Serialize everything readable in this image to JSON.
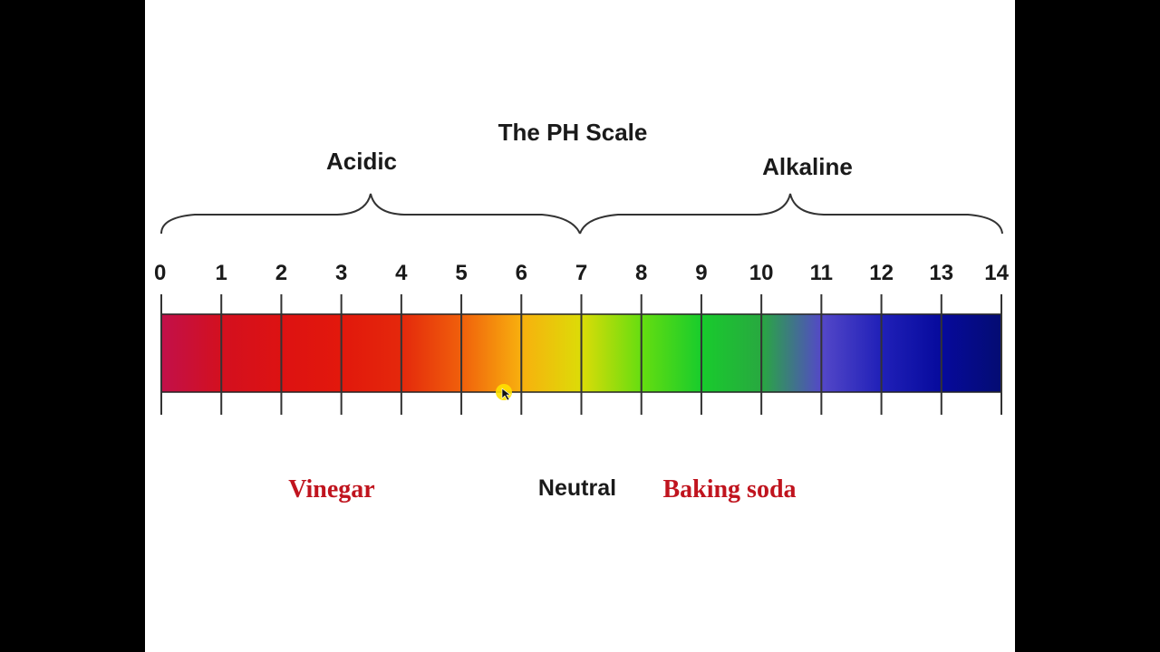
{
  "title": "The PH Scale",
  "ranges": {
    "acidic": "Acidic",
    "alkaline": "Alkaline"
  },
  "ticks": [
    "0",
    "1",
    "2",
    "3",
    "4",
    "5",
    "6",
    "7",
    "8",
    "9",
    "10",
    "11",
    "12",
    "13",
    "14"
  ],
  "labels": {
    "neutral": "Neutral",
    "vinegar": "Vinegar",
    "baking_soda": "Baking soda"
  },
  "colors": {
    "example_label": "#c0141e",
    "cursor": "#ffe100",
    "gradient": [
      "#c2104a",
      "#d3101f",
      "#dd1212",
      "#e2180c",
      "#e4280c",
      "#f0600c",
      "#f8b00e",
      "#dcdc08",
      "#66dd10",
      "#18cc2c",
      "#28a840",
      "#5448c8",
      "#2020b8",
      "#060a9c",
      "#040c72"
    ]
  }
}
